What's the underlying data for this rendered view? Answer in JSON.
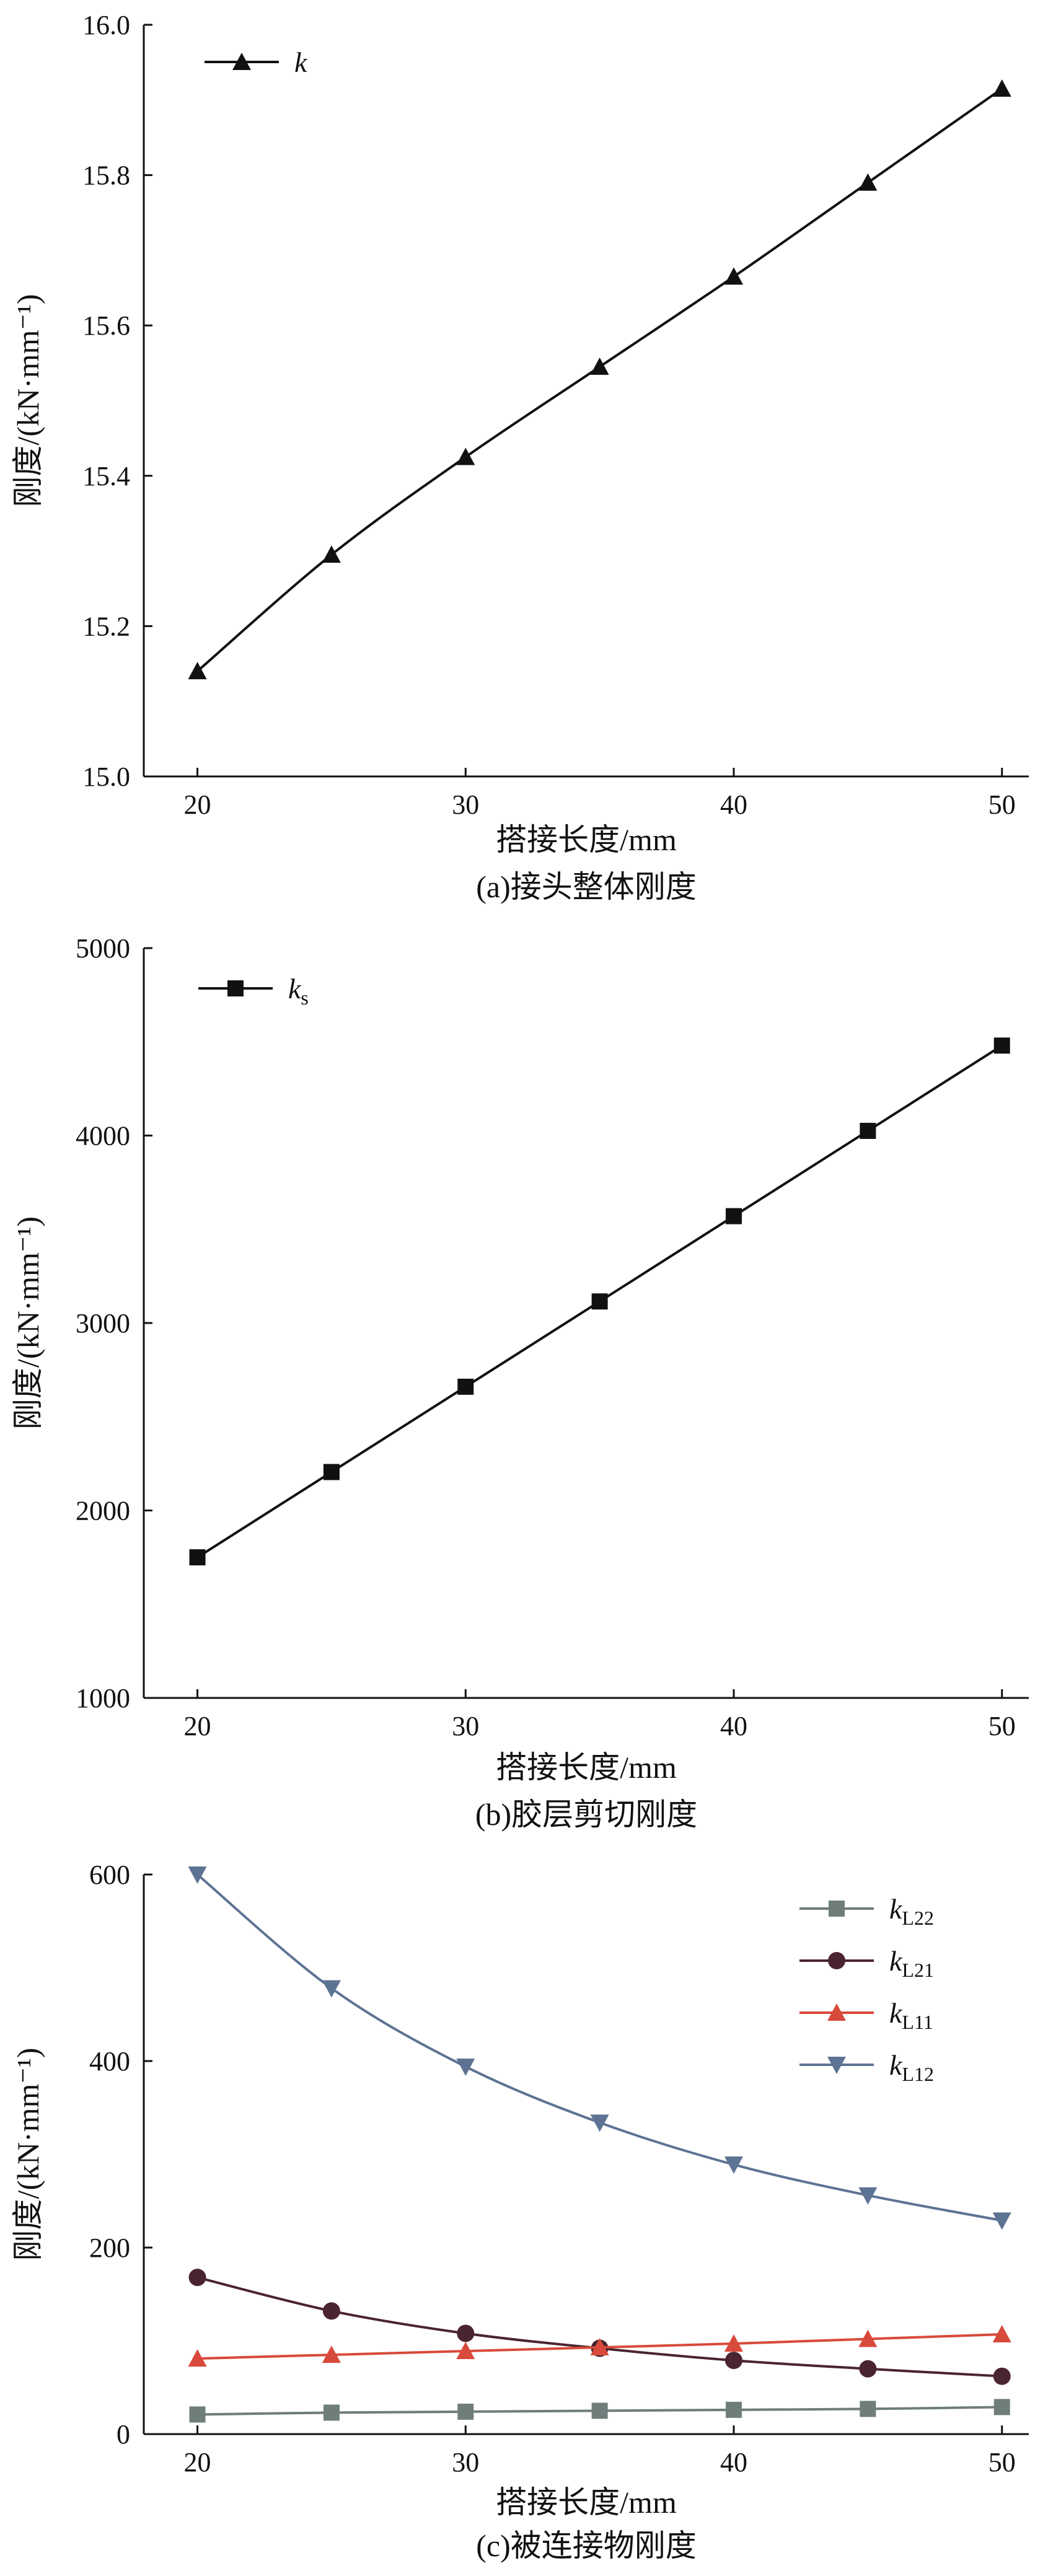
{
  "colors": {
    "axis": "#111111",
    "kL22": "#6f7d7b",
    "kL21": "#4a2430",
    "kL11": "#d84a3b",
    "kL12": "#5d7394"
  },
  "chart_data": [
    {
      "type": "line",
      "xlabel": "搭接长度/mm",
      "ylabel": "刚度/(kN·mm⁻¹)",
      "caption": "(a)接头整体刚度",
      "xlim": [
        18,
        51
      ],
      "ylim": [
        15.0,
        16.0
      ],
      "xticks": [
        20,
        30,
        40,
        50
      ],
      "yticks": [
        "15.0",
        "15.2",
        "15.4",
        "15.6",
        "15.8",
        "16.0"
      ],
      "grid": false,
      "legend_position": "top-left",
      "x": [
        20,
        25,
        30,
        35,
        40,
        45,
        50
      ],
      "series": [
        {
          "name": "k",
          "sub": "",
          "marker": "triangle-up",
          "color_key": "axis",
          "values": [
            15.14,
            15.295,
            15.425,
            15.545,
            15.665,
            15.79,
            15.915
          ]
        }
      ]
    },
    {
      "type": "line",
      "xlabel": "搭接长度/mm",
      "ylabel": "刚度/(kN·mm⁻¹)",
      "caption": "(b)胶层剪切刚度",
      "xlim": [
        18,
        51
      ],
      "ylim": [
        1000,
        5000
      ],
      "xticks": [
        20,
        30,
        40,
        50
      ],
      "yticks": [
        "1000",
        "2000",
        "3000",
        "4000",
        "5000"
      ],
      "grid": false,
      "legend_position": "top-left",
      "x": [
        20,
        25,
        30,
        35,
        40,
        45,
        50
      ],
      "series": [
        {
          "name": "k",
          "sub": "s",
          "marker": "square",
          "color_key": "axis",
          "values": [
            1750,
            2205,
            2660,
            3115,
            3570,
            4025,
            4480
          ]
        }
      ]
    },
    {
      "type": "line",
      "xlabel": "搭接长度/mm",
      "ylabel": "刚度/(kN·mm⁻¹)",
      "caption": "(c)被连接物刚度",
      "xlim": [
        18,
        51
      ],
      "ylim": [
        0,
        600
      ],
      "xticks": [
        20,
        30,
        40,
        50
      ],
      "yticks": [
        "0",
        "200",
        "400",
        "600"
      ],
      "grid": false,
      "legend_position": "top-right",
      "x": [
        20,
        25,
        30,
        35,
        40,
        45,
        50
      ],
      "series": [
        {
          "name": "k",
          "sub": "L22",
          "marker": "square",
          "color_key": "kL22",
          "values": [
            21,
            23,
            24,
            25,
            26,
            27,
            29
          ]
        },
        {
          "name": "k",
          "sub": "L21",
          "marker": "circle",
          "color_key": "kL21",
          "values": [
            168,
            132,
            108,
            92,
            79,
            70,
            62
          ]
        },
        {
          "name": "k",
          "sub": "L11",
          "marker": "triangle-up",
          "color_key": "kL11",
          "values": [
            81,
            85,
            89,
            93,
            97,
            102,
            107
          ]
        },
        {
          "name": "k",
          "sub": "L12",
          "marker": "triangle-down",
          "color_key": "kL12",
          "values": [
            600,
            478,
            394,
            334,
            289,
            256,
            229
          ]
        }
      ]
    }
  ]
}
